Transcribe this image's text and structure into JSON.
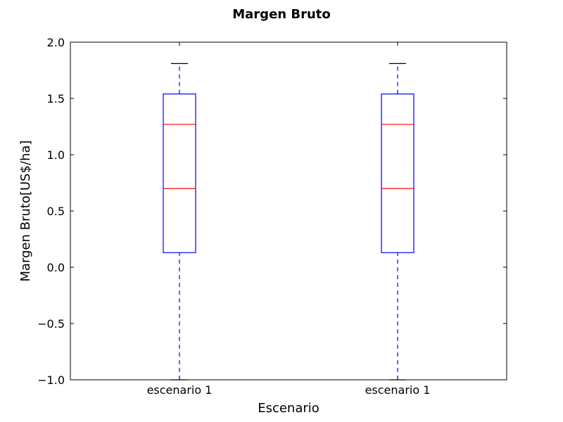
{
  "chart_data": {
    "type": "box",
    "title": "Margen Bruto",
    "xlabel": "Escenario",
    "ylabel": "Margen Bruto[US$/ha]",
    "ylim": [
      -1.0,
      2.0
    ],
    "yticks": [
      -1.0,
      -0.5,
      0.0,
      0.5,
      1.0,
      1.5,
      2.0
    ],
    "ytick_labels": [
      "−1.0",
      "−0.5",
      "0.0",
      "0.5",
      "1.0",
      "1.5",
      "2.0"
    ],
    "categories": [
      "escenario 1",
      "escenario 1"
    ],
    "boxes": [
      {
        "whisker_low": -1.0,
        "q1": 0.13,
        "median": 0.7,
        "mean_line": 1.27,
        "q3": 1.54,
        "whisker_high": 1.81
      },
      {
        "whisker_low": -1.0,
        "q1": 0.13,
        "median": 0.7,
        "mean_line": 1.27,
        "q3": 1.54,
        "whisker_high": 1.81
      }
    ],
    "grid": false,
    "colors": {
      "box": "#0000ff",
      "median": "#ff0000",
      "whisker": "#0000ff",
      "cap": "#000000",
      "axes": "#000000"
    }
  }
}
